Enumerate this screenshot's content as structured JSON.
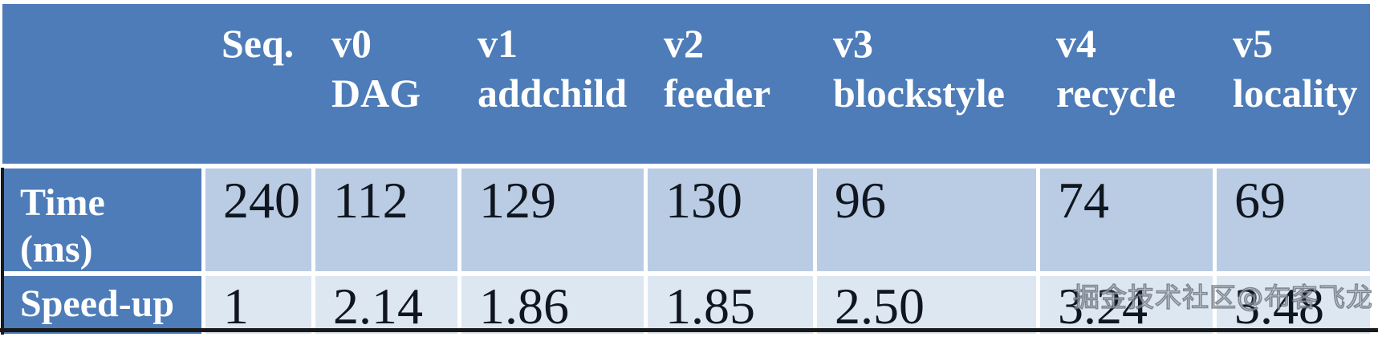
{
  "table": {
    "header": [
      {
        "line1": "",
        "line2": ""
      },
      {
        "line1": "Seq.",
        "line2": ""
      },
      {
        "line1": "v0",
        "line2": "DAG"
      },
      {
        "line1": "v1",
        "line2": "addchild"
      },
      {
        "line1": "v2",
        "line2": "feeder"
      },
      {
        "line1": "v3",
        "line2": "blockstyle"
      },
      {
        "line1": "v4",
        "line2": "recycle"
      },
      {
        "line1": "v5",
        "line2": "locality"
      }
    ],
    "rows": [
      {
        "label": "Time\n(ms)",
        "values": [
          "240",
          "112",
          "129",
          "130",
          "96",
          "74",
          "69"
        ]
      },
      {
        "label": "Speed-up",
        "values": [
          "1",
          "2.14",
          "1.86",
          "1.85",
          "2.50",
          "3.24",
          "3.48"
        ]
      }
    ]
  },
  "watermark": {
    "text": "掘金技术社区@布客飞龙"
  },
  "colors": {
    "header_blue": "#4d7cb8",
    "cell_light": "#b9cce4",
    "cell_lighter": "#dde7f2",
    "text_dark": "#10161f",
    "text_light": "#ffffff",
    "border_dark": "#191919",
    "watermark_gray": "#6e7680"
  },
  "chart_data": {
    "type": "table",
    "columns": [
      "",
      "Seq.",
      "v0 DAG",
      "v1 addchild",
      "v2 feeder",
      "v3 blockstyle",
      "v4 recycle",
      "v5 locality"
    ],
    "rows": [
      {
        "label": "Time (ms)",
        "values": [
          240,
          112,
          129,
          130,
          96,
          74,
          69
        ]
      },
      {
        "label": "Speed-up",
        "values": [
          1,
          2.14,
          1.86,
          1.85,
          2.5,
          3.24,
          3.48
        ]
      }
    ]
  }
}
